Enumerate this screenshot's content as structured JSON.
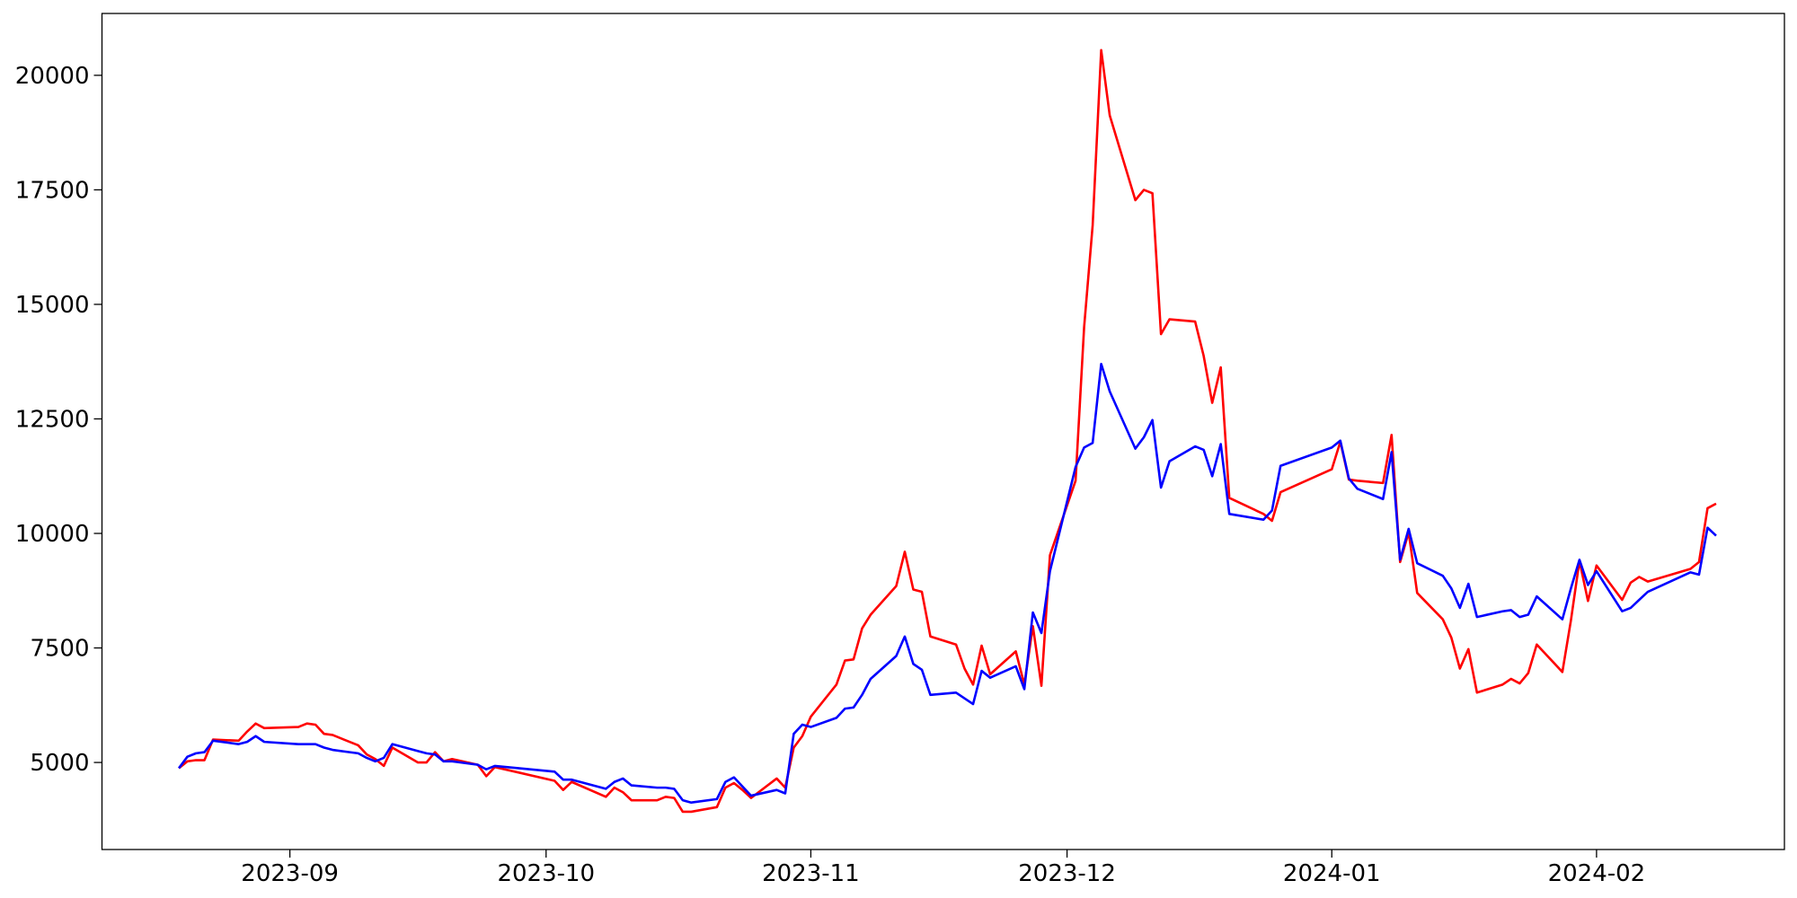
{
  "chart_data": {
    "type": "line",
    "x": [
      "2023-08-19",
      "2023-08-20",
      "2023-08-21",
      "2023-08-22",
      "2023-08-23",
      "2023-08-26",
      "2023-08-27",
      "2023-08-28",
      "2023-08-29",
      "2023-09-02",
      "2023-09-03",
      "2023-09-04",
      "2023-09-05",
      "2023-09-06",
      "2023-09-09",
      "2023-09-10",
      "2023-09-11",
      "2023-09-12",
      "2023-09-13",
      "2023-09-16",
      "2023-09-17",
      "2023-09-18",
      "2023-09-19",
      "2023-09-20",
      "2023-09-23",
      "2023-09-24",
      "2023-09-25",
      "2023-10-02",
      "2023-10-03",
      "2023-10-04",
      "2023-10-08",
      "2023-10-09",
      "2023-10-10",
      "2023-10-11",
      "2023-10-14",
      "2023-10-15",
      "2023-10-16",
      "2023-10-17",
      "2023-10-18",
      "2023-10-21",
      "2023-10-22",
      "2023-10-23",
      "2023-10-24",
      "2023-10-25",
      "2023-10-28",
      "2023-10-29",
      "2023-10-30",
      "2023-10-31",
      "2023-11-01",
      "2023-11-04",
      "2023-11-05",
      "2023-11-06",
      "2023-11-07",
      "2023-11-08",
      "2023-11-11",
      "2023-11-12",
      "2023-11-13",
      "2023-11-14",
      "2023-11-15",
      "2023-11-18",
      "2023-11-19",
      "2023-11-20",
      "2023-11-21",
      "2023-11-22",
      "2023-11-25",
      "2023-11-26",
      "2023-11-27",
      "2023-11-28",
      "2023-11-29",
      "2023-12-02",
      "2023-12-03",
      "2023-12-04",
      "2023-12-05",
      "2023-12-06",
      "2023-12-09",
      "2023-12-10",
      "2023-12-11",
      "2023-12-12",
      "2023-12-13",
      "2023-12-16",
      "2023-12-17",
      "2023-12-18",
      "2023-12-19",
      "2023-12-20",
      "2023-12-24",
      "2023-12-25",
      "2023-12-26",
      "2024-01-01",
      "2024-01-02",
      "2024-01-03",
      "2024-01-04",
      "2024-01-07",
      "2024-01-08",
      "2024-01-09",
      "2024-01-10",
      "2024-01-11",
      "2024-01-14",
      "2024-01-15",
      "2024-01-16",
      "2024-01-17",
      "2024-01-18",
      "2024-01-21",
      "2024-01-22",
      "2024-01-23",
      "2024-01-24",
      "2024-01-25",
      "2024-01-28",
      "2024-01-29",
      "2024-01-30",
      "2024-01-31",
      "2024-02-01",
      "2024-02-04",
      "2024-02-05",
      "2024-02-06",
      "2024-02-07",
      "2024-02-12",
      "2024-02-13",
      "2024-02-14",
      "2024-02-15"
    ],
    "series": [
      {
        "color": "#ff0000",
        "values": [
          4875,
          5025,
          5050,
          5050,
          5500,
          5475,
          5675,
          5850,
          5750,
          5775,
          5850,
          5825,
          5625,
          5600,
          5375,
          5175,
          5075,
          4925,
          5325,
          5000,
          5000,
          5225,
          5025,
          5075,
          4950,
          4700,
          4900,
          4600,
          4400,
          4575,
          4250,
          4450,
          4350,
          4175,
          4175,
          4250,
          4225,
          3925,
          3925,
          4025,
          4450,
          4550,
          4400,
          4225,
          4650,
          4450,
          5325,
          5575,
          6000,
          6700,
          7225,
          7250,
          7925,
          8225,
          8850,
          9600,
          8775,
          8725,
          7750,
          7575,
          7050,
          6700,
          7550,
          6925,
          7425,
          6700,
          7975,
          6675,
          9525,
          11150,
          14500,
          16725,
          20550,
          19125,
          17275,
          17500,
          17425,
          14350,
          14675,
          14625,
          13875,
          12850,
          13625,
          10775,
          10425,
          10275,
          10900,
          11400,
          12000,
          11175,
          11150,
          11100,
          12150,
          9375,
          10025,
          8700,
          8125,
          7725,
          7050,
          7475,
          6525,
          6700,
          6825,
          6725,
          6950,
          7575,
          6975,
          8100,
          9400,
          8525,
          9300,
          8550,
          8925,
          9050,
          8950,
          9225,
          9375,
          10550,
          10650
        ]
      },
      {
        "color": "#0000ff",
        "values": [
          4875,
          5125,
          5200,
          5225,
          5475,
          5400,
          5450,
          5575,
          5450,
          5400,
          5400,
          5400,
          5325,
          5275,
          5200,
          5100,
          5025,
          5100,
          5400,
          5250,
          5200,
          5175,
          5025,
          5025,
          4950,
          4850,
          4925,
          4800,
          4625,
          4625,
          4425,
          4575,
          4650,
          4500,
          4450,
          4450,
          4425,
          4175,
          4125,
          4200,
          4575,
          4675,
          4475,
          4275,
          4400,
          4325,
          5625,
          5825,
          5775,
          5975,
          6175,
          6200,
          6475,
          6825,
          7325,
          7750,
          7150,
          7025,
          6475,
          6525,
          6400,
          6275,
          7000,
          6850,
          7100,
          6600,
          8275,
          7825,
          9175,
          11450,
          11875,
          11975,
          13700,
          13100,
          11850,
          12100,
          12475,
          11000,
          11575,
          11900,
          11825,
          11250,
          11950,
          10425,
          10300,
          10500,
          11475,
          11875,
          12025,
          11200,
          10975,
          10750,
          11775,
          9425,
          10100,
          9350,
          9075,
          8800,
          8375,
          8900,
          8175,
          8300,
          8325,
          8175,
          8225,
          8625,
          8125,
          8800,
          9425,
          8875,
          9175,
          8300,
          8375,
          8550,
          8725,
          9150,
          9100,
          10125,
          9950
        ]
      }
    ],
    "xlim": [
      "2023-08-10",
      "2024-02-23"
    ],
    "xticks": [
      {
        "value": "2023-09-01",
        "label": "2023-09"
      },
      {
        "value": "2023-10-01",
        "label": "2023-10"
      },
      {
        "value": "2023-11-01",
        "label": "2023-11"
      },
      {
        "value": "2023-12-01",
        "label": "2023-12"
      },
      {
        "value": "2024-01-01",
        "label": "2024-01"
      },
      {
        "value": "2024-02-01",
        "label": "2024-02"
      }
    ],
    "ylim": [
      3100,
      21350
    ],
    "yticks": [
      5000,
      7500,
      10000,
      12500,
      15000,
      17500,
      20000
    ],
    "grid": false
  }
}
